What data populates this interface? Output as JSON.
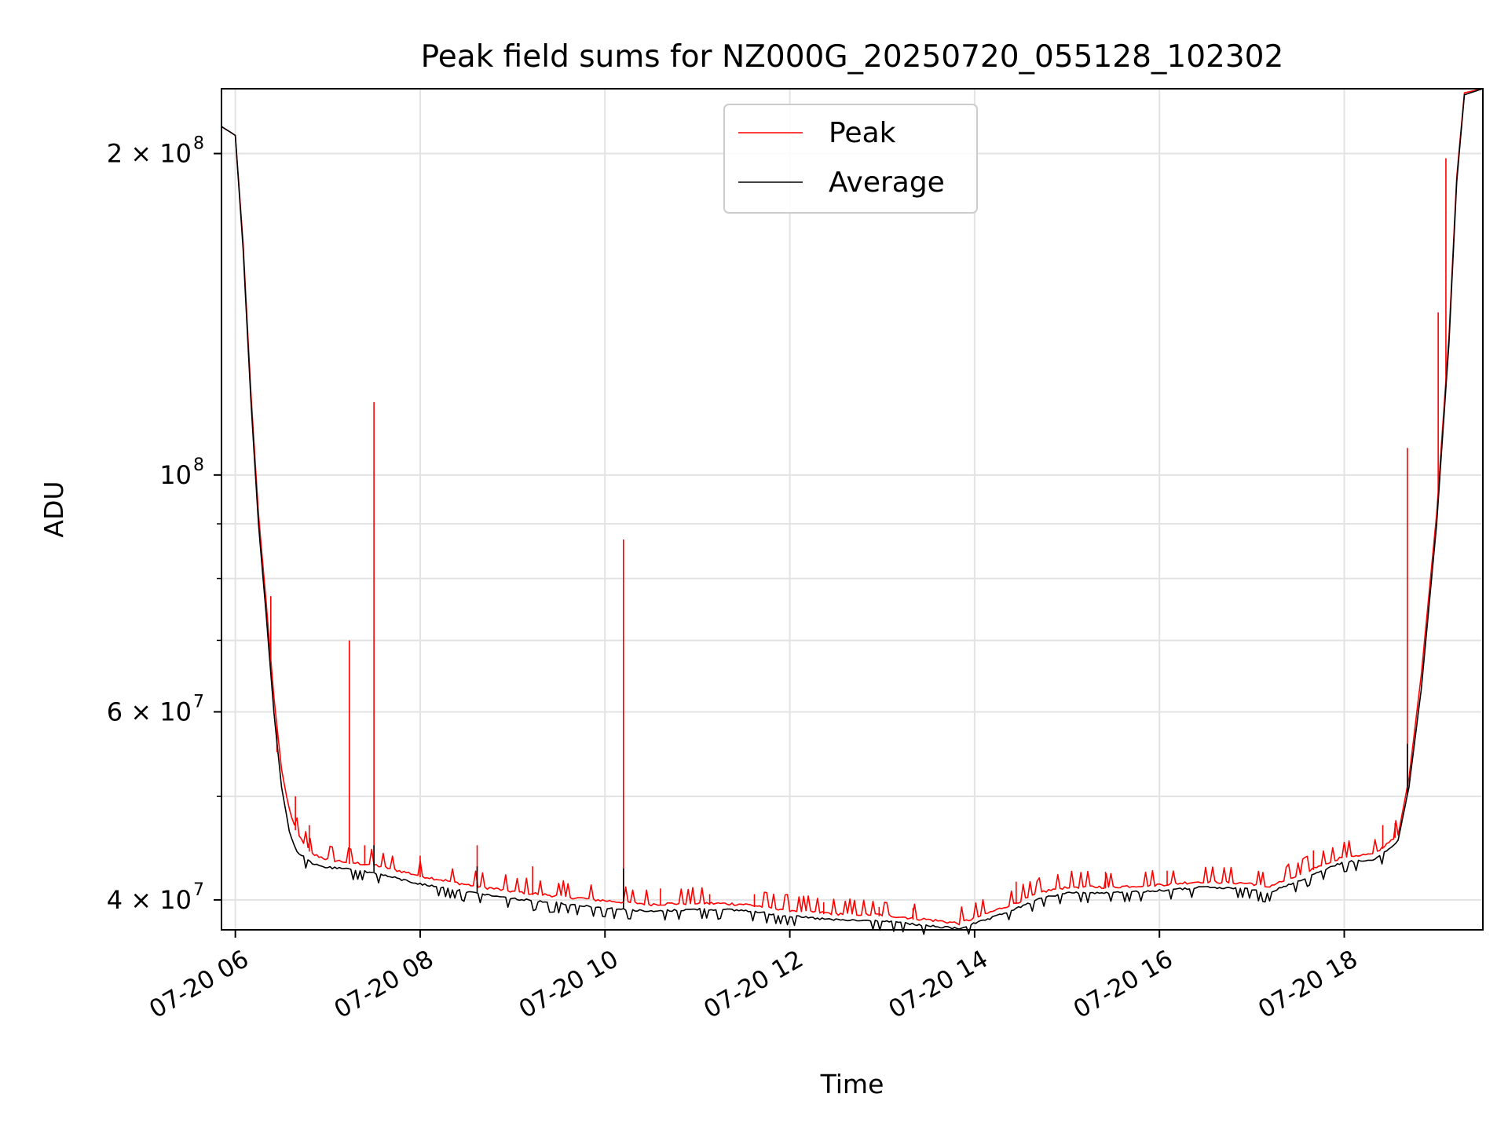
{
  "chart_data": {
    "type": "line",
    "title": "Peak field sums for NZ000G_20250720_055128_102302",
    "xlabel": "Time",
    "ylabel": "ADU",
    "x_scale": "time",
    "y_scale": "log",
    "xlim": [
      "2025-07-20 05:51",
      "2025-07-20 19:30"
    ],
    "ylim": [
      37500000,
      230000000
    ],
    "grid": true,
    "legend_position": "upper center",
    "x_ticks": [
      {
        "value": "2025-07-20 06:00",
        "label": "07-20 06"
      },
      {
        "value": "2025-07-20 08:00",
        "label": "07-20 08"
      },
      {
        "value": "2025-07-20 10:00",
        "label": "07-20 10"
      },
      {
        "value": "2025-07-20 12:00",
        "label": "07-20 12"
      },
      {
        "value": "2025-07-20 14:00",
        "label": "07-20 14"
      },
      {
        "value": "2025-07-20 16:00",
        "label": "07-20 16"
      },
      {
        "value": "2025-07-20 18:00",
        "label": "07-20 18"
      }
    ],
    "y_ticks": [
      {
        "value": 40000000,
        "label": "4 × 10",
        "exp": "7"
      },
      {
        "value": 60000000,
        "label": "6 × 10",
        "exp": "7"
      },
      {
        "value": 100000000,
        "label": "10",
        "exp": "8"
      },
      {
        "value": 200000000,
        "label": "2 × 10",
        "exp": "8"
      }
    ],
    "y_minor_ticks": [
      50000000,
      70000000,
      80000000,
      90000000
    ],
    "series": [
      {
        "name": "Peak",
        "color": "#ff0000",
        "points": [
          [
            "2025-07-20 05:51",
            212000000
          ],
          [
            "2025-07-20 06:00",
            208000000
          ],
          [
            "2025-07-20 06:05",
            165000000
          ],
          [
            "2025-07-20 06:10",
            120000000
          ],
          [
            "2025-07-20 06:15",
            92000000
          ],
          [
            "2025-07-20 06:20",
            76000000
          ],
          [
            "2025-07-20 06:25",
            62000000
          ],
          [
            "2025-07-20 06:30",
            53000000
          ],
          [
            "2025-07-20 06:35",
            48500000
          ],
          [
            "2025-07-20 06:40",
            46000000
          ],
          [
            "2025-07-20 06:50",
            44000000
          ],
          [
            "2025-07-20 07:00",
            43500000
          ],
          [
            "2025-07-20 07:15",
            43200000
          ],
          [
            "2025-07-20 07:30",
            43000000
          ],
          [
            "2025-07-20 08:00",
            42000000
          ],
          [
            "2025-07-20 08:30",
            41200000
          ],
          [
            "2025-07-20 09:00",
            40600000
          ],
          [
            "2025-07-20 09:30",
            40200000
          ],
          [
            "2025-07-20 10:00",
            39800000
          ],
          [
            "2025-07-20 10:30",
            39500000
          ],
          [
            "2025-07-20 11:00",
            39600000
          ],
          [
            "2025-07-20 11:30",
            39500000
          ],
          [
            "2025-07-20 12:00",
            39000000
          ],
          [
            "2025-07-20 12:30",
            38700000
          ],
          [
            "2025-07-20 13:00",
            38600000
          ],
          [
            "2025-07-20 13:30",
            38200000
          ],
          [
            "2025-07-20 13:50",
            37900000
          ],
          [
            "2025-07-20 14:10",
            38800000
          ],
          [
            "2025-07-20 14:30",
            39800000
          ],
          [
            "2025-07-20 14:45",
            40600000
          ],
          [
            "2025-07-20 15:00",
            41000000
          ],
          [
            "2025-07-20 15:30",
            41000000
          ],
          [
            "2025-07-20 16:00",
            41200000
          ],
          [
            "2025-07-20 16:30",
            41500000
          ],
          [
            "2025-07-20 17:00",
            41300000
          ],
          [
            "2025-07-20 17:10",
            41000000
          ],
          [
            "2025-07-20 17:30",
            42000000
          ],
          [
            "2025-07-20 17:45",
            43000000
          ],
          [
            "2025-07-20 18:00",
            43800000
          ],
          [
            "2025-07-20 18:20",
            44000000
          ],
          [
            "2025-07-20 18:35",
            46000000
          ],
          [
            "2025-07-20 18:42",
            52000000
          ],
          [
            "2025-07-20 18:50",
            65000000
          ],
          [
            "2025-07-20 19:00",
            92000000
          ],
          [
            "2025-07-20 19:08",
            135000000
          ],
          [
            "2025-07-20 19:13",
            190000000
          ],
          [
            "2025-07-20 19:18",
            228000000
          ],
          [
            "2025-07-20 19:30",
            230000000
          ]
        ],
        "spikes": [
          [
            "2025-07-20 06:23",
            77000000
          ],
          [
            "2025-07-20 06:27",
            55000000
          ],
          [
            "2025-07-20 06:39",
            50000000
          ],
          [
            "2025-07-20 06:48",
            47000000
          ],
          [
            "2025-07-20 07:14",
            70000000
          ],
          [
            "2025-07-20 07:24",
            45000000
          ],
          [
            "2025-07-20 07:30",
            117000000
          ],
          [
            "2025-07-20 08:00",
            44000000
          ],
          [
            "2025-07-20 08:37",
            45000000
          ],
          [
            "2025-07-20 09:13",
            43000000
          ],
          [
            "2025-07-20 10:12",
            87000000
          ],
          [
            "2025-07-20 10:36",
            41000000
          ],
          [
            "2025-07-20 11:08",
            40500000
          ],
          [
            "2025-07-20 11:37",
            40500000
          ],
          [
            "2025-07-20 12:22",
            39800000
          ],
          [
            "2025-07-20 12:58",
            39400000
          ],
          [
            "2025-07-20 13:20",
            39300000
          ],
          [
            "2025-07-20 14:27",
            41600000
          ],
          [
            "2025-07-20 15:25",
            42500000
          ],
          [
            "2025-07-20 16:05",
            42600000
          ],
          [
            "2025-07-20 17:40",
            44500000
          ],
          [
            "2025-07-20 18:25",
            47000000
          ],
          [
            "2025-07-20 18:33",
            47200000
          ],
          [
            "2025-07-20 18:41",
            106000000
          ],
          [
            "2025-07-20 19:01",
            142000000
          ],
          [
            "2025-07-20 19:06",
            198000000
          ]
        ]
      },
      {
        "name": "Average",
        "color": "#000000",
        "points": [
          [
            "2025-07-20 05:51",
            212000000
          ],
          [
            "2025-07-20 06:00",
            208000000
          ],
          [
            "2025-07-20 06:05",
            163000000
          ],
          [
            "2025-07-20 06:10",
            118000000
          ],
          [
            "2025-07-20 06:15",
            90000000
          ],
          [
            "2025-07-20 06:20",
            74000000
          ],
          [
            "2025-07-20 06:25",
            60000000
          ],
          [
            "2025-07-20 06:30",
            51000000
          ],
          [
            "2025-07-20 06:35",
            46500000
          ],
          [
            "2025-07-20 06:40",
            44500000
          ],
          [
            "2025-07-20 06:50",
            43300000
          ],
          [
            "2025-07-20 07:00",
            43000000
          ],
          [
            "2025-07-20 07:15",
            42800000
          ],
          [
            "2025-07-20 07:30",
            42500000
          ],
          [
            "2025-07-20 08:00",
            41500000
          ],
          [
            "2025-07-20 08:30",
            40800000
          ],
          [
            "2025-07-20 09:00",
            40200000
          ],
          [
            "2025-07-20 09:30",
            39800000
          ],
          [
            "2025-07-20 10:00",
            39400000
          ],
          [
            "2025-07-20 10:30",
            39100000
          ],
          [
            "2025-07-20 11:00",
            39300000
          ],
          [
            "2025-07-20 11:30",
            39200000
          ],
          [
            "2025-07-20 12:00",
            38700000
          ],
          [
            "2025-07-20 12:30",
            38400000
          ],
          [
            "2025-07-20 13:00",
            38300000
          ],
          [
            "2025-07-20 13:30",
            37900000
          ],
          [
            "2025-07-20 13:50",
            37700000
          ],
          [
            "2025-07-20 14:10",
            38500000
          ],
          [
            "2025-07-20 14:30",
            39500000
          ],
          [
            "2025-07-20 14:45",
            40300000
          ],
          [
            "2025-07-20 15:00",
            40700000
          ],
          [
            "2025-07-20 15:30",
            40700000
          ],
          [
            "2025-07-20 16:00",
            40900000
          ],
          [
            "2025-07-20 16:30",
            41200000
          ],
          [
            "2025-07-20 17:00",
            41000000
          ],
          [
            "2025-07-20 17:10",
            40700000
          ],
          [
            "2025-07-20 17:30",
            41700000
          ],
          [
            "2025-07-20 17:45",
            42700000
          ],
          [
            "2025-07-20 18:00",
            43500000
          ],
          [
            "2025-07-20 18:20",
            43700000
          ],
          [
            "2025-07-20 18:35",
            45500000
          ],
          [
            "2025-07-20 18:42",
            51000000
          ],
          [
            "2025-07-20 18:50",
            63000000
          ],
          [
            "2025-07-20 19:00",
            90000000
          ],
          [
            "2025-07-20 19:08",
            133000000
          ],
          [
            "2025-07-20 19:13",
            188000000
          ],
          [
            "2025-07-20 19:18",
            227000000
          ],
          [
            "2025-07-20 19:30",
            230000000
          ]
        ],
        "spikes": [
          [
            "2025-07-20 07:30",
            45000000
          ],
          [
            "2025-07-20 08:37",
            43000000
          ],
          [
            "2025-07-20 10:12",
            42800000
          ],
          [
            "2025-07-20 18:41",
            56000000
          ]
        ]
      }
    ]
  }
}
